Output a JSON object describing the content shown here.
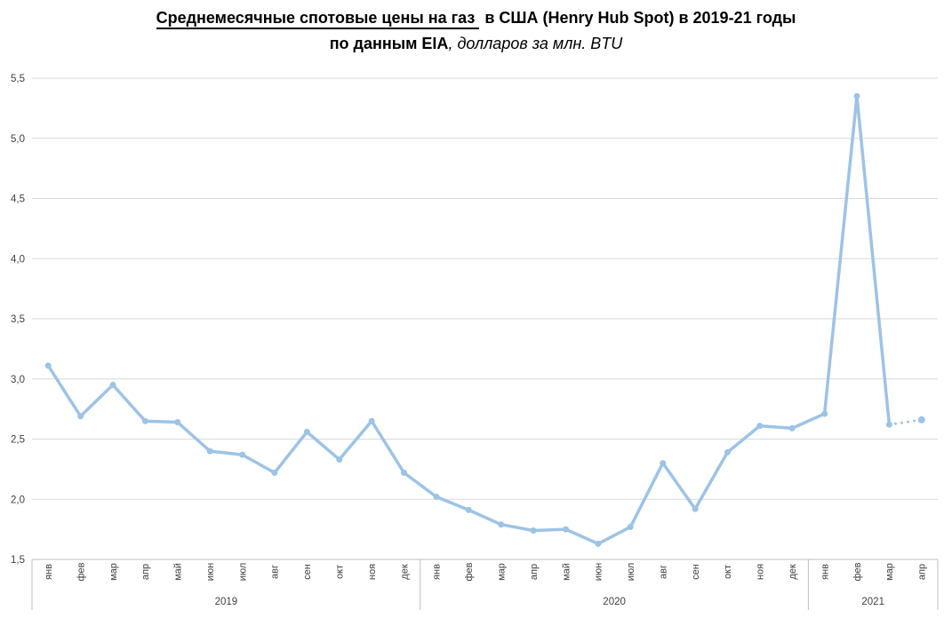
{
  "title": {
    "line1_underlined": "Среднемесячные спотовые цены на газ",
    "line1_rest": "в США (Henry Hub Spot) в 2019-21 годы",
    "line2_bold": "по данным EIA",
    "line2_italic": ", долларов за млн. BTU"
  },
  "chart_data": {
    "type": "line",
    "title": "Среднемесячные спотовые цены на газ в США (Henry Hub Spot) в 2019-21 годы по данным EIA, долларов за млн. BTU",
    "xlabel": "",
    "ylabel": "",
    "ylim": [
      1.5,
      5.5
    ],
    "ytick_step": 0.5,
    "ytick_labels_top_to_bottom": [
      "5,5",
      "5,0",
      "4,5",
      "4,0",
      "3,5",
      "3,0",
      "2,5",
      "2,0",
      "1,5"
    ],
    "grid": true,
    "legend": "none",
    "line_color": "#9DC3E6",
    "gridline_color": "#D9D9D9",
    "axis_color": "#BFBFBF",
    "label_color": "#404040",
    "dotted_last_segment": true,
    "groups": [
      {
        "year": "2019",
        "months": [
          "янв",
          "фев",
          "мар",
          "апр",
          "май",
          "июн",
          "июл",
          "авг",
          "сен",
          "окт",
          "ноя",
          "дек"
        ],
        "values": [
          3.11,
          2.69,
          2.95,
          2.65,
          2.64,
          2.4,
          2.37,
          2.22,
          2.56,
          2.33,
          2.65,
          2.22
        ]
      },
      {
        "year": "2020",
        "months": [
          "янв",
          "фев",
          "мар",
          "апр",
          "май",
          "июн",
          "июл",
          "авг",
          "сен",
          "окт",
          "ноя",
          "дек"
        ],
        "values": [
          2.02,
          1.91,
          1.79,
          1.74,
          1.75,
          1.63,
          1.77,
          2.3,
          1.92,
          2.39,
          2.61,
          2.59
        ]
      },
      {
        "year": "2021",
        "months": [
          "янв",
          "фев",
          "мар",
          "апр"
        ],
        "values": [
          2.71,
          5.35,
          2.62,
          2.66
        ]
      }
    ]
  }
}
